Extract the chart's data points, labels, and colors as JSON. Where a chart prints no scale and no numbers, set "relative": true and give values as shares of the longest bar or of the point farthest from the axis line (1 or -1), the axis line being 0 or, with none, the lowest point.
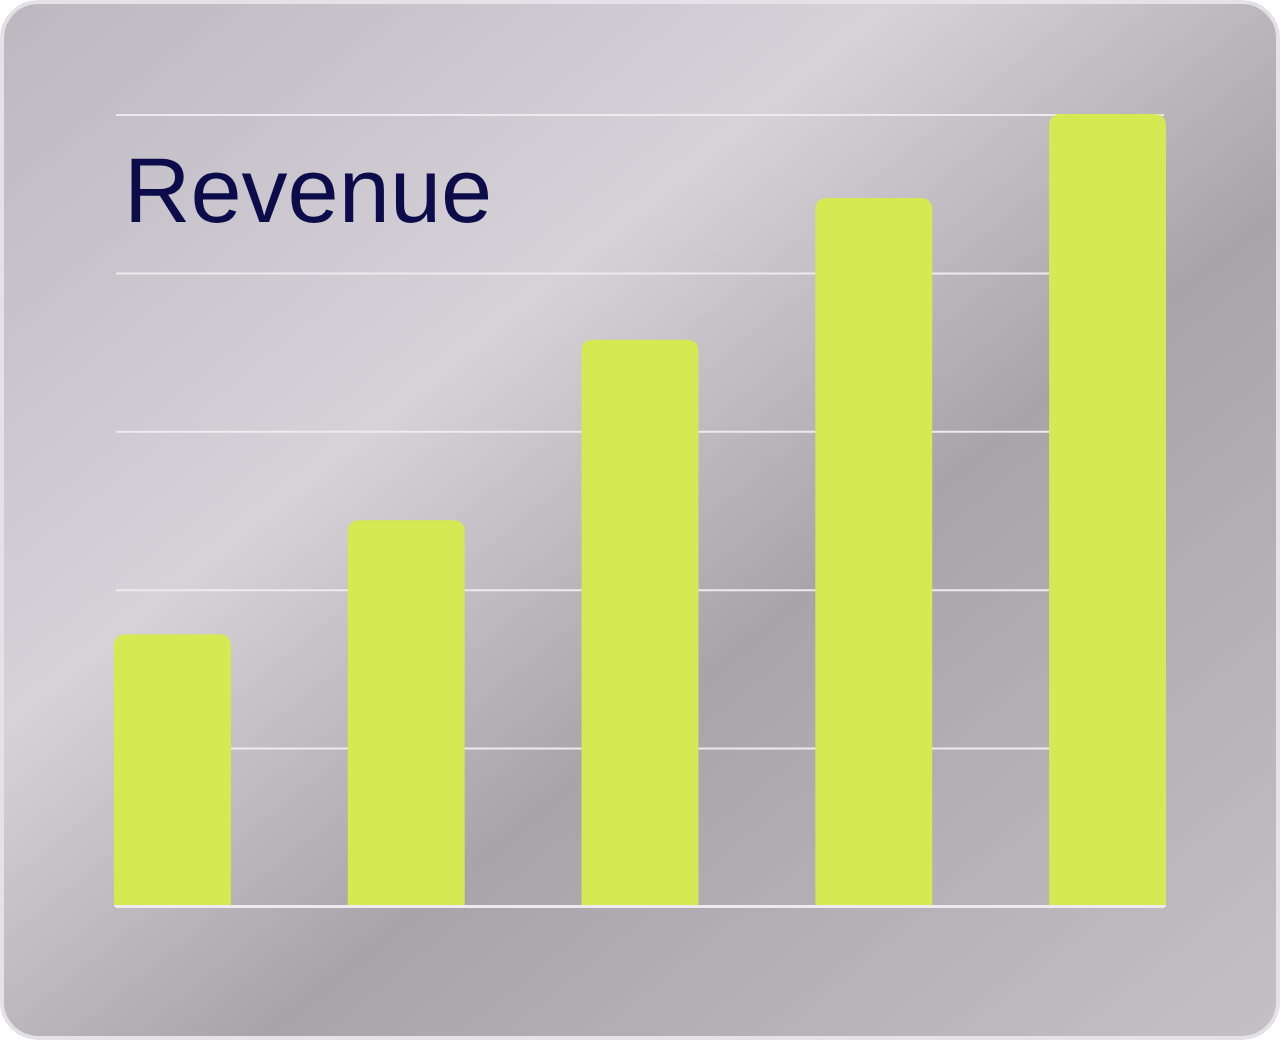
{
  "chart_data": {
    "type": "bar",
    "title": "Revenue",
    "categories": [
      null,
      null,
      null,
      null,
      null
    ],
    "values": [
      0.343,
      0.487,
      0.715,
      0.894,
      1
    ],
    "color": "#d5e952",
    "relative": true,
    "grid": "y"
  }
}
